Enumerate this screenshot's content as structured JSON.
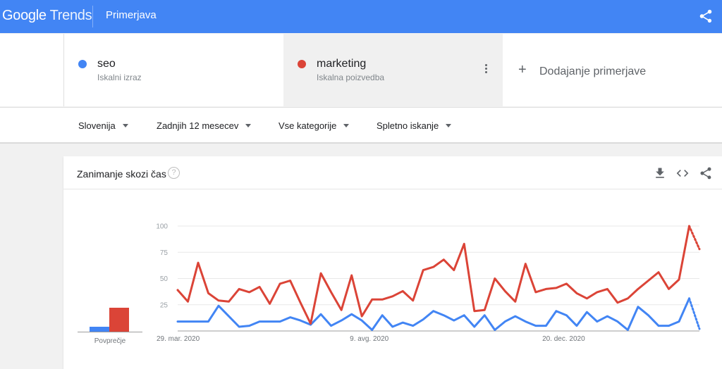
{
  "header": {
    "logo_google": "Google",
    "logo_trends": "Trends",
    "title": "Primerjava",
    "share_icon": "share-icon"
  },
  "terms": [
    {
      "name": "seo",
      "type": "Iskalni izraz",
      "color": "#4285f4"
    },
    {
      "name": "marketing",
      "type": "Iskalna poizvedba",
      "color": "#db4437"
    }
  ],
  "add_compare": {
    "label": "Dodajanje primerjave"
  },
  "filters": {
    "region": "Slovenija",
    "time": "Zadnjih 12 mesecev",
    "category": "Vse kategorije",
    "search_type": "Spletno iskanje"
  },
  "interest_card": {
    "title": "Zanimanje skozi čas",
    "help": "?",
    "averages_label": "Povprečje",
    "icons": [
      "download-icon",
      "embed-icon",
      "share-icon"
    ]
  },
  "chart_data": {
    "type": "line",
    "x_labels": [
      "29. mar. 2020",
      "9. avg. 2020",
      "20. dec. 2020"
    ],
    "x_label_index": [
      0,
      19,
      38
    ],
    "y_ticks": [
      25,
      50,
      75,
      100
    ],
    "ylim": [
      0,
      100
    ],
    "grid": true,
    "partial_last_point": true,
    "series": [
      {
        "name": "seo",
        "color": "#4285f4",
        "average": 9,
        "values": [
          9,
          9,
          9,
          9,
          24,
          14,
          4,
          5,
          9,
          9,
          9,
          13,
          10,
          6,
          16,
          5,
          10,
          16,
          10,
          1,
          15,
          4,
          8,
          5,
          11,
          19,
          15,
          10,
          15,
          4,
          15,
          1,
          9,
          14,
          9,
          5,
          5,
          19,
          15,
          5,
          18,
          9,
          14,
          9,
          1,
          23,
          15,
          5,
          5,
          9,
          31,
          2
        ]
      },
      {
        "name": "marketing",
        "color": "#db4437",
        "average": 42,
        "values": [
          39,
          28,
          65,
          36,
          29,
          28,
          40,
          37,
          42,
          26,
          45,
          48,
          27,
          7,
          55,
          37,
          20,
          53,
          14,
          30,
          30,
          33,
          38,
          29,
          58,
          61,
          68,
          58,
          83,
          19,
          20,
          50,
          38,
          28,
          64,
          37,
          40,
          41,
          45,
          36,
          31,
          37,
          40,
          27,
          31,
          40,
          48,
          56,
          40,
          49,
          100,
          78
        ]
      }
    ]
  }
}
